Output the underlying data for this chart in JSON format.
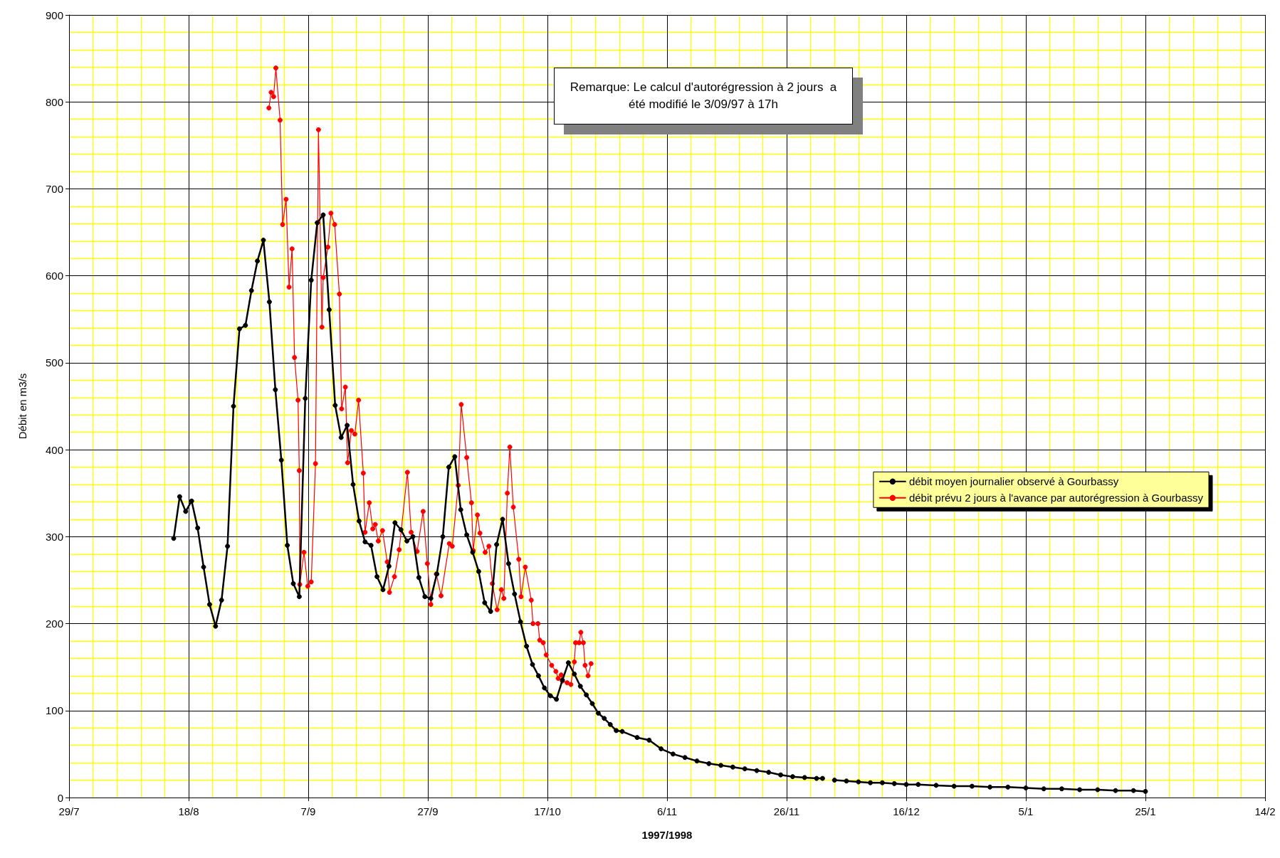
{
  "chart_data": {
    "type": "line",
    "xlabel": "1997/1998",
    "ylabel": "Débit en m3/s",
    "xlim": [
      "1997-07-29",
      "1998-02-14"
    ],
    "xticks": [
      {
        "value": "1997-07-29",
        "label": "29/7"
      },
      {
        "value": "1997-08-02",
        "label": null
      },
      {
        "value": "1997-08-06",
        "label": null
      },
      {
        "value": "1997-08-10",
        "label": null
      },
      {
        "value": "1997-08-14",
        "label": null
      },
      {
        "value": "1997-08-18",
        "label": "18/8"
      },
      {
        "value": "1997-08-22",
        "label": null
      },
      {
        "value": "1997-08-26",
        "label": null
      },
      {
        "value": "1997-08-30",
        "label": null
      },
      {
        "value": "1997-09-03",
        "label": null
      },
      {
        "value": "1997-09-07",
        "label": "7/9"
      },
      {
        "value": "1997-09-11",
        "label": null
      },
      {
        "value": "1997-09-15",
        "label": null
      },
      {
        "value": "1997-09-19",
        "label": null
      },
      {
        "value": "1997-09-23",
        "label": null
      },
      {
        "value": "1997-09-27",
        "label": "27/9"
      },
      {
        "value": "1997-10-01",
        "label": null
      },
      {
        "value": "1997-10-05",
        "label": null
      },
      {
        "value": "1997-10-09",
        "label": null
      },
      {
        "value": "1997-10-13",
        "label": null
      },
      {
        "value": "1997-10-17",
        "label": "17/10"
      },
      {
        "value": "1997-10-21",
        "label": null
      },
      {
        "value": "1997-10-25",
        "label": null
      },
      {
        "value": "1997-10-29",
        "label": null
      },
      {
        "value": "1997-11-02",
        "label": null
      },
      {
        "value": "1997-11-06",
        "label": "6/11"
      },
      {
        "value": "1997-11-10",
        "label": null
      },
      {
        "value": "1997-11-14",
        "label": null
      },
      {
        "value": "1997-11-18",
        "label": null
      },
      {
        "value": "1997-11-22",
        "label": null
      },
      {
        "value": "1997-11-26",
        "label": "26/11"
      },
      {
        "value": "1997-11-30",
        "label": null
      },
      {
        "value": "1997-12-04",
        "label": null
      },
      {
        "value": "1997-12-08",
        "label": null
      },
      {
        "value": "1997-12-12",
        "label": null
      },
      {
        "value": "1997-12-16",
        "label": "16/12"
      },
      {
        "value": "1997-12-20",
        "label": null
      },
      {
        "value": "1997-12-24",
        "label": null
      },
      {
        "value": "1997-12-28",
        "label": null
      },
      {
        "value": "1998-01-01",
        "label": null
      },
      {
        "value": "1998-01-05",
        "label": "5/1"
      },
      {
        "value": "1998-01-09",
        "label": null
      },
      {
        "value": "1998-01-13",
        "label": null
      },
      {
        "value": "1998-01-17",
        "label": null
      },
      {
        "value": "1998-01-21",
        "label": null
      },
      {
        "value": "1998-01-25",
        "label": "25/1"
      },
      {
        "value": "1998-01-29",
        "label": null
      },
      {
        "value": "1998-02-02",
        "label": null
      },
      {
        "value": "1998-02-06",
        "label": null
      },
      {
        "value": "1998-02-10",
        "label": null
      },
      {
        "value": "1998-02-14",
        "label": "14/2"
      }
    ],
    "ylim": [
      0,
      900
    ],
    "yticks": [
      0,
      {
        "value": 20,
        "label": null
      },
      {
        "value": 40,
        "label": null
      },
      {
        "value": 60,
        "label": null
      },
      {
        "value": 80,
        "label": null
      },
      100,
      {
        "value": 120,
        "label": null
      },
      {
        "value": 140,
        "label": null
      },
      {
        "value": 160,
        "label": null
      },
      {
        "value": 180,
        "label": null
      },
      200,
      {
        "value": 220,
        "label": null
      },
      {
        "value": 240,
        "label": null
      },
      {
        "value": 260,
        "label": null
      },
      {
        "value": 280,
        "label": null
      },
      300,
      {
        "value": 320,
        "label": null
      },
      {
        "value": 340,
        "label": null
      },
      {
        "value": 360,
        "label": null
      },
      {
        "value": 380,
        "label": null
      },
      400,
      {
        "value": 420,
        "label": null
      },
      {
        "value": 440,
        "label": null
      },
      {
        "value": 460,
        "label": null
      },
      {
        "value": 480,
        "label": null
      },
      500,
      {
        "value": 520,
        "label": null
      },
      {
        "value": 540,
        "label": null
      },
      {
        "value": 560,
        "label": null
      },
      {
        "value": 580,
        "label": null
      },
      600,
      {
        "value": 620,
        "label": null
      },
      {
        "value": 640,
        "label": null
      },
      {
        "value": 660,
        "label": null
      },
      {
        "value": 680,
        "label": null
      },
      700,
      {
        "value": 720,
        "label": null
      },
      {
        "value": 740,
        "label": null
      },
      {
        "value": 760,
        "label": null
      },
      {
        "value": 780,
        "label": null
      },
      800,
      {
        "value": 820,
        "label": null
      },
      {
        "value": 840,
        "label": null
      },
      {
        "value": 860,
        "label": null
      },
      {
        "value": 880,
        "label": null
      },
      900
    ],
    "grid": true,
    "legend": "right",
    "annotations": [
      "Remarque: Le calcul d'autorégression à 2 jours  a été modifié le 3/09/97 à 17h"
    ],
    "series": [
      {
        "name": "débit moyen journalier observé à Gourbassy",
        "color": "#000000",
        "marker": "circle",
        "x": [
          "1997-08-15T12:00",
          "1997-08-16T12:00",
          "1997-08-17T12:00",
          "1997-08-18T12:00",
          "1997-08-19T12:00",
          "1997-08-20T12:00",
          "1997-08-21T12:00",
          "1997-08-22T12:00",
          "1997-08-23T12:00",
          "1997-08-24T12:00",
          "1997-08-25T12:00",
          "1997-08-26T12:00",
          "1997-08-27T12:00",
          "1997-08-28T12:00",
          "1997-08-29T12:00",
          "1997-08-30T12:00",
          "1997-08-31T12:00",
          "1997-09-01T12:00",
          "1997-09-02T12:00",
          "1997-09-03T12:00",
          "1997-09-04T12:00",
          "1997-09-05T12:00",
          "1997-09-06T12:00",
          "1997-09-07T12:00",
          "1997-09-08T12:00",
          "1997-09-09T12:00",
          "1997-09-10T12:00",
          "1997-09-11T12:00",
          "1997-09-12T12:00",
          "1997-09-13T12:00",
          "1997-09-14T12:00",
          "1997-09-15T12:00",
          "1997-09-16T12:00",
          "1997-09-17T12:00",
          "1997-09-18T12:00",
          "1997-09-19T12:00",
          "1997-09-20T12:00",
          "1997-09-21T12:00",
          "1997-09-22T12:00",
          "1997-09-23T12:00",
          "1997-09-24T12:00",
          "1997-09-25T12:00",
          "1997-09-26T12:00",
          "1997-09-27T12:00",
          "1997-09-28T12:00",
          "1997-09-29T12:00",
          "1997-09-30T12:00",
          "1997-10-01T12:00",
          "1997-10-02T12:00",
          "1997-10-03T12:00",
          "1997-10-04T12:00",
          "1997-10-05T12:00",
          "1997-10-06T12:00",
          "1997-10-07T12:00",
          "1997-10-08T12:00",
          "1997-10-09T12:00",
          "1997-10-10T12:00",
          "1997-10-11T12:00",
          "1997-10-12T12:00",
          "1997-10-13T12:00",
          "1997-10-14T12:00",
          "1997-10-15T12:00",
          "1997-10-16T12:00",
          "1997-10-17T12:00",
          "1997-10-18T12:00",
          "1997-10-19T12:00",
          "1997-10-20T12:00",
          "1997-10-21T12:00",
          "1997-10-22T12:00",
          "1997-10-23T12:00",
          "1997-10-24T12:00",
          "1997-10-25T12:00",
          "1997-10-26T12:00",
          "1997-10-27T12:00",
          "1997-10-28T12:00",
          "1997-10-29T12:00",
          "1997-11-01",
          "1997-11-03",
          "1997-11-05",
          "1997-11-07",
          "1997-11-09",
          "1997-11-11",
          "1997-11-13",
          "1997-11-15",
          "1997-11-17",
          "1997-11-19",
          "1997-11-21",
          "1997-11-23",
          "1997-11-25",
          "1997-11-27",
          "1997-11-29",
          "1997-12-01",
          "1997-12-02",
          "1997-12-03",
          "1997-12-04",
          "1997-12-06",
          "1997-12-08",
          "1997-12-10",
          "1997-12-12",
          "1997-12-14",
          "1997-12-16",
          "1997-12-18",
          "1997-12-21",
          "1997-12-24",
          "1997-12-27",
          "1997-12-30",
          "1998-01-02",
          "1998-01-05",
          "1998-01-08",
          "1998-01-11",
          "1998-01-14",
          "1998-01-17",
          "1998-01-20",
          "1998-01-23",
          "1998-01-25"
        ],
        "values": [
          298,
          346,
          329,
          341,
          310,
          265,
          222,
          197,
          227,
          289,
          450,
          539,
          543,
          583,
          617,
          641,
          570,
          469,
          388,
          290,
          246,
          231,
          459,
          595,
          661,
          670,
          561,
          451,
          414,
          428,
          360,
          318,
          294,
          290,
          254,
          239,
          266,
          316,
          308,
          295,
          300,
          253,
          231,
          229,
          257,
          300,
          380,
          392,
          331,
          302,
          282,
          260,
          224,
          214,
          291,
          320,
          269,
          234,
          202,
          174,
          153,
          140,
          126,
          117,
          113,
          135,
          155,
          142,
          128,
          118,
          108,
          97,
          91,
          84,
          77,
          76,
          69,
          66,
          56,
          50,
          46,
          42,
          39,
          37,
          35,
          33,
          31,
          29,
          26,
          24,
          23,
          22,
          22,
          null,
          20,
          19,
          18,
          17,
          17,
          16,
          15,
          15,
          14,
          13,
          13,
          12,
          12,
          11,
          10,
          10,
          9,
          9,
          8,
          8,
          7
        ]
      },
      {
        "name": "débit prévu 2 jours à l'avance par autorégression à Gourbassy",
        "color": "#ff0000",
        "marker": "circle",
        "x": [
          "1997-08-31T10:00",
          "1997-08-31T19:00",
          "1997-09-01T05:00",
          "1997-09-01T14:00",
          "1997-09-02T07:00",
          "1997-09-02T17:00",
          "1997-09-03T07:00",
          "1997-09-03T19:00",
          "1997-09-04T07:00",
          "1997-09-04T17:00",
          "1997-09-05T07:00",
          "1997-09-05T12:00",
          "1997-09-05T14:00",
          "1997-09-06T07:00",
          "1997-09-06T22:00",
          "1997-09-07T12:00",
          "1997-09-08T05:00",
          "1997-09-08T17:00",
          "1997-09-09T07:00",
          "1997-09-09T12:00",
          "1997-09-10T07:00",
          "1997-09-10T19:00",
          "1997-09-11T10:00",
          "1997-09-12T05:00",
          "1997-09-12T14:00",
          "1997-09-13T05:00",
          "1997-09-13T14:00",
          "1997-09-14T05:00",
          "1997-09-14T19:00",
          "1997-09-15T10:00",
          "1997-09-16T05:00",
          "1997-09-16T12:00",
          "1997-09-17T05:00",
          "1997-09-17T19:00",
          "1997-09-18T05:00",
          "1997-09-18T17:00",
          "1997-09-19T10:00",
          "1997-09-20T05:00",
          "1997-09-20T14:00",
          "1997-09-21T10:00",
          "1997-09-22T05:00",
          "1997-09-23T14:00",
          "1997-09-24T05:00",
          "1997-09-25T05:00",
          "1997-09-26T05:00",
          "1997-09-26T22:00",
          "1997-09-27T12:00",
          "1997-09-28T10:00",
          "1997-09-29T05:00",
          "1997-09-30T14:00",
          "1997-10-01T02:00",
          "1997-10-02T02:00",
          "1997-10-02T14:00",
          "1997-10-03T12:00",
          "1997-10-04T07:00",
          "1997-10-04T14:00",
          "1997-10-05T07:00",
          "1997-10-05T17:00",
          "1997-10-06T14:00",
          "1997-10-07T05:00",
          "1997-10-07T19:00",
          "1997-10-08T14:00",
          "1997-10-09T07:00",
          "1997-10-09T17:00",
          "1997-10-10T07:00",
          "1997-10-10T17:00",
          "1997-10-11T07:00",
          "1997-10-12T05:00",
          "1997-10-12T14:00",
          "1997-10-13T07:00",
          "1997-10-14T07:00",
          "1997-10-14T14:00",
          "1997-10-15T10:00",
          "1997-10-15T17:00",
          "1997-10-16T07:00",
          "1997-10-16T19:00",
          "1997-10-17T17:00",
          "1997-10-18T10:00",
          "1997-10-18T19:00",
          "1997-10-19T07:00",
          "1997-10-19T12:00",
          "1997-10-20T07:00",
          "1997-10-20T22:00",
          "1997-10-21T12:00",
          "1997-10-21T17:00",
          "1997-10-22T07:00",
          "1997-10-22T14:00",
          "1997-10-23T00:00",
          "1997-10-23T07:00",
          "1997-10-23T19:00",
          "1997-10-24T07:00"
        ],
        "values": [
          793,
          811,
          806,
          839,
          779,
          659,
          688,
          587,
          631,
          506,
          457,
          376,
          245,
          282,
          243,
          248,
          384,
          768,
          541,
          598,
          633,
          672,
          659,
          579,
          447,
          472,
          385,
          422,
          418,
          457,
          373,
          305,
          339,
          309,
          314,
          295,
          307,
          271,
          236,
          254,
          285,
          374,
          305,
          283,
          329,
          269,
          222,
          257,
          232,
          292,
          289,
          359,
          452,
          391,
          339,
          284,
          325,
          304,
          282,
          289,
          246,
          216,
          239,
          229,
          350,
          403,
          334,
          274,
          231,
          265,
          227,
          200,
          200,
          181,
          178,
          164,
          152,
          145,
          137,
          141,
          134,
          132,
          130,
          156,
          178,
          178,
          190,
          178,
          152,
          140,
          154
        ]
      }
    ]
  }
}
